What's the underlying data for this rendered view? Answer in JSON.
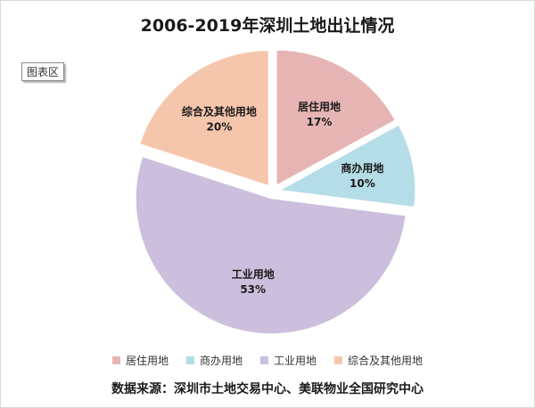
{
  "chart_data": {
    "type": "pie",
    "title": "2006-2019年深圳土地出让情况",
    "categories": [
      "居住用地",
      "商办用地",
      "工业用地",
      "综合及其他用地"
    ],
    "values": [
      17,
      10,
      53,
      20
    ],
    "value_labels": [
      "17%",
      "10%",
      "53%",
      "20%"
    ],
    "colors": [
      "#e6b5b3",
      "#b5dde8",
      "#cbbfdd",
      "#f6c6ac"
    ],
    "legend_position": "bottom",
    "exploded": true
  },
  "chart_area_label": "图表区",
  "source_note": "数据来源：深圳市土地交易中心、美联物业全国研究中心"
}
